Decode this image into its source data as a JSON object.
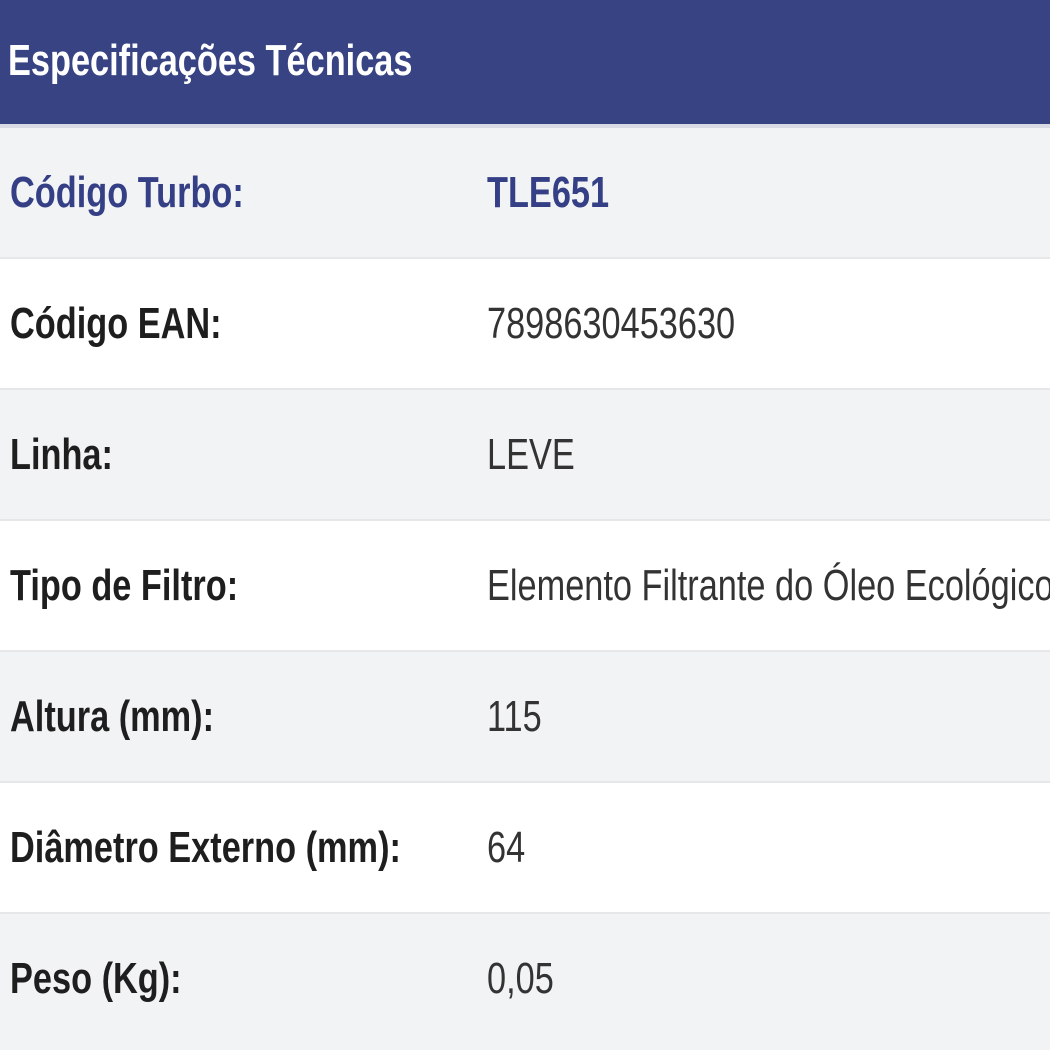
{
  "title": "Especificações Técnicas",
  "colors": {
    "header": "#374383",
    "accent_text": "#343f86",
    "row_alt": "#f2f3f4"
  },
  "rows": [
    {
      "label": "Código Turbo:",
      "value": "TLE651"
    },
    {
      "label": "Código EAN:",
      "value": "7898630453630"
    },
    {
      "label": "Linha:",
      "value": "LEVE"
    },
    {
      "label": "Tipo de Filtro:",
      "value": "Elemento Filtrante do Óleo Ecológico"
    },
    {
      "label": "Altura (mm):",
      "value": "115"
    },
    {
      "label": "Diâmetro Externo (mm):",
      "value": "64"
    },
    {
      "label": "Peso (Kg):",
      "value": "0,05"
    }
  ]
}
